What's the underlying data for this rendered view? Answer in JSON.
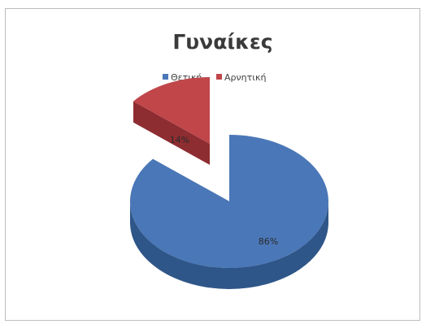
{
  "chart_data": {
    "type": "pie",
    "title": "Γυναίκες",
    "categories": [
      "Θετική",
      "Αρνητική"
    ],
    "values": [
      86,
      14
    ],
    "data_labels": [
      "86%",
      "14%"
    ],
    "colors": [
      "#4a77b7",
      "#c0464a"
    ],
    "side_colors": [
      "#2f5688",
      "#8e2d31"
    ],
    "legend_position": "top",
    "style": "3d-exploded"
  }
}
